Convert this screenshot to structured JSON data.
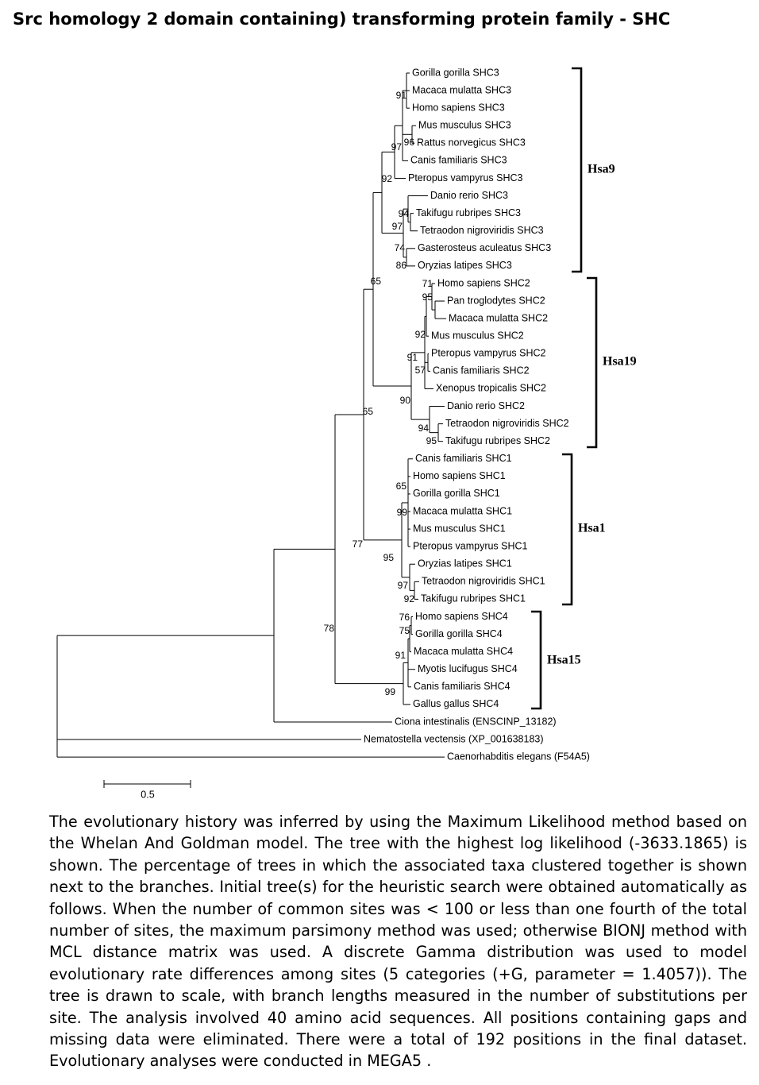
{
  "title": "Src homology 2 domain containing) transforming protein family  -  SHC",
  "diagram": {
    "type": "phylogenetic-tree",
    "taxa": [
      "Gorilla gorilla SHC3",
      "Macaca mulatta SHC3",
      "Homo sapiens SHC3",
      "Mus musculus SHC3",
      "Rattus norvegicus SHC3",
      "Canis familiaris SHC3",
      "Pteropus vampyrus SHC3",
      "Danio rerio SHC3",
      "Takifugu rubripes SHC3",
      "Tetraodon nigroviridis SHC3",
      "Gasterosteus aculeatus SHC3",
      "Oryzias latipes SHC3",
      "Homo sapiens SHC2",
      "Pan troglodytes SHC2",
      "Macaca mulatta SHC2",
      "Mus musculus SHC2",
      "Pteropus vampyrus SHC2",
      "Canis familiaris SHC2",
      "Xenopus tropicalis SHC2",
      "Danio rerio SHC2",
      "Tetraodon nigroviridis SHC2",
      "Takifugu rubripes SHC2",
      "Canis familiaris SHC1",
      "Homo sapiens SHC1",
      "Gorilla gorilla SHC1",
      "Macaca mulatta SHC1",
      "Mus musculus SHC1",
      "Pteropus vampyrus SHC1",
      "Oryzias latipes SHC1",
      "Tetraodon nigroviridis SHC1",
      "Takifugu rubripes SHC1",
      "Homo sapiens SHC4",
      "Gorilla gorilla SHC4",
      "Macaca mulatta SHC4",
      "Myotis lucifugus SHC4",
      "Canis familiaris SHC4",
      "Gallus gallus SHC4",
      "Ciona intestinalis (ENSCINP_13182)",
      "Nematostella vectensis (XP_001638183)",
      "Caenorhabditis elegans (F54A5)"
    ],
    "bootstrap_values": [
      "91",
      "96",
      "97",
      "92",
      "94",
      "97",
      "74",
      "86",
      "65",
      "71",
      "95",
      "92",
      "91",
      "57",
      "90",
      "94",
      "95",
      "65",
      "65",
      "99",
      "95",
      "97",
      "92",
      "77",
      "76",
      "75",
      "91",
      "99",
      "78"
    ],
    "groups": [
      "Hsa9",
      "Hsa19",
      "Hsa1",
      "Hsa15"
    ],
    "scale_label": "0.5"
  },
  "caption": "The evolutionary history was inferred by using the Maximum Likelihood method based on the Whelan And Goldman model. The tree with the highest log likelihood (-3633.1865) is shown. The percentage of trees in which the associated taxa clustered together is shown next to the branches. Initial tree(s) for the heuristic search were obtained automatically as follows. When the number of common sites was < 100 or less than one fourth of the total number of sites, the maximum parsimony method was used; otherwise BIONJ method with MCL distance matrix was used. A discrete Gamma distribution was used to model evolutionary rate differences among sites (5 categories (+G, parameter = 1.4057)). The tree is drawn to scale, with branch lengths measured in the number of substitutions per site. The analysis involved 40 amino acid sequences. All positions containing gaps and missing data were eliminated. There were a total of 192 positions in the final dataset. Evolutionary analyses were conducted in MEGA5 ."
}
